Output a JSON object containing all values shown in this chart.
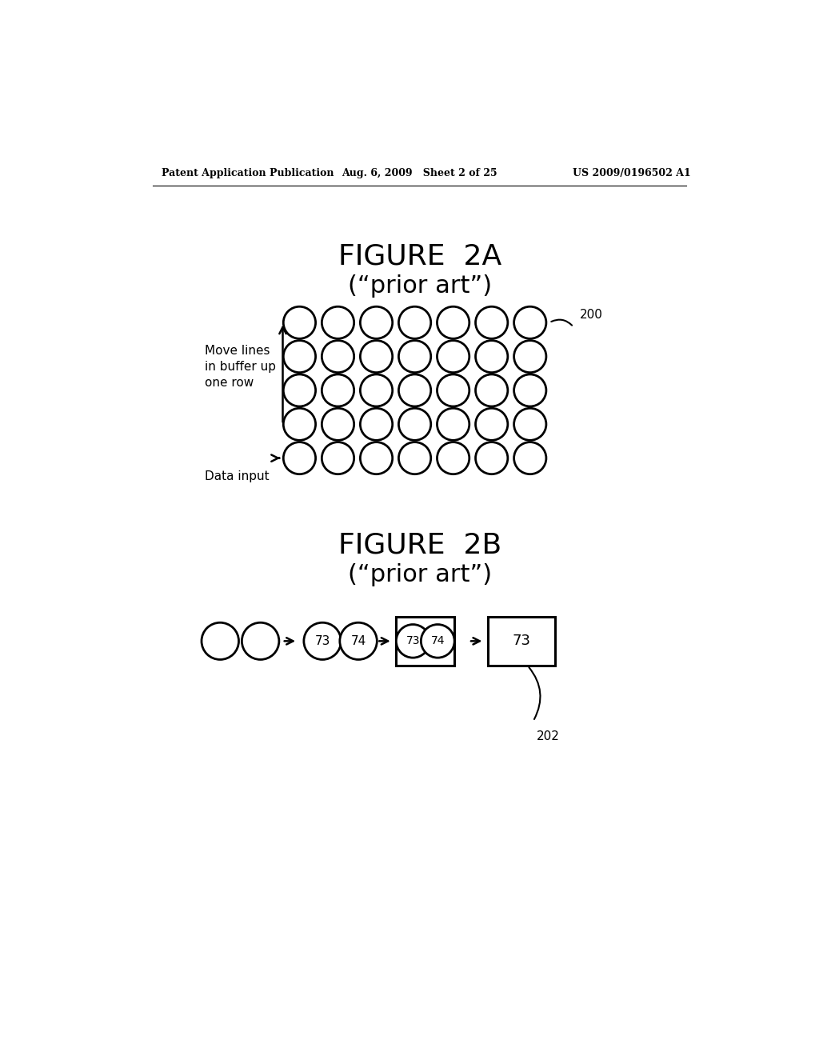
{
  "background_color": "#ffffff",
  "header_left": "Patent Application Publication",
  "header_mid": "Aug. 6, 2009   Sheet 2 of 25",
  "header_right": "US 2009/0196502 A1",
  "fig2a_title": "FIGURE  2A",
  "fig2a_subtitle": "(“prior art”)",
  "fig2b_title": "FIGURE  2B",
  "fig2b_subtitle": "(“prior art”)",
  "label_200": "200",
  "label_202": "202",
  "grid_cols": 7,
  "grid_rows": 5,
  "move_lines_text": "Move lines\nin buffer up\none row",
  "data_input_text": "Data input",
  "circle_color": "#ffffff",
  "circle_edge": "#000000",
  "circle_linewidth": 2.0
}
